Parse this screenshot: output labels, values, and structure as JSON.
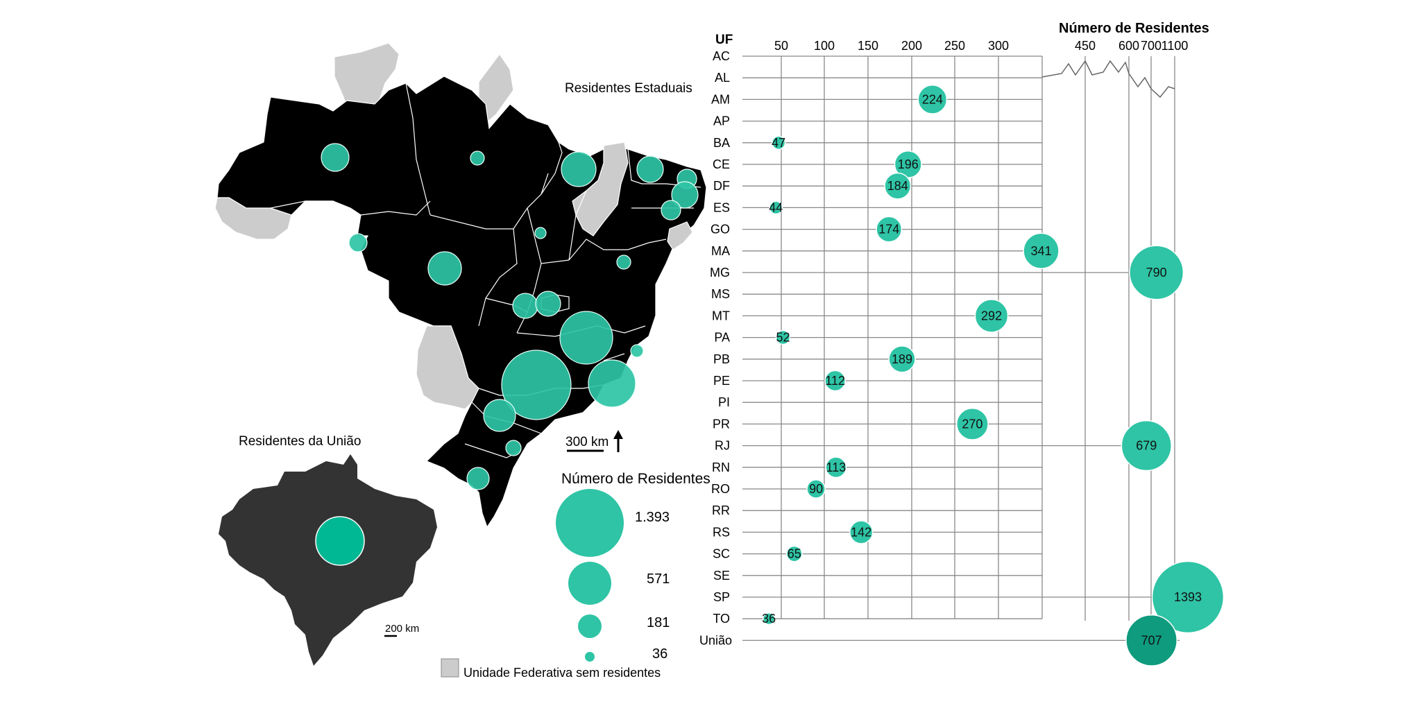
{
  "colors": {
    "bubble": "#2ec4a5",
    "bubble_dark": "#0e9b7e",
    "state_black": "#000000",
    "no_residents": "#cccccc",
    "union_map": "#333333",
    "grid": "#888888"
  },
  "map": {
    "state_title": "Residentes Estaduais",
    "union_title": "Residentes da União",
    "scale_state": "300 km",
    "scale_union": "200 km",
    "north_arrow_icon": "arrow-up-icon"
  },
  "legend": {
    "title": "Número de Residentes",
    "sizes": [
      "1.393",
      "571",
      "181",
      "36"
    ],
    "no_residents_label": "Unidade Federativa sem residentes"
  },
  "chart_data": {
    "type": "scatter",
    "encoding": "bubble",
    "title": "Número de Residentes",
    "ylabel": "UF",
    "categories": [
      "AC",
      "AL",
      "AM",
      "AP",
      "BA",
      "CE",
      "DF",
      "ES",
      "GO",
      "MA",
      "MG",
      "MS",
      "MT",
      "PA",
      "PB",
      "PE",
      "PI",
      "PR",
      "RJ",
      "RN",
      "RO",
      "RR",
      "RS",
      "SC",
      "SE",
      "SP",
      "TO",
      "União"
    ],
    "values": [
      null,
      null,
      224,
      null,
      47,
      196,
      184,
      44,
      174,
      341,
      790,
      null,
      292,
      52,
      189,
      112,
      null,
      270,
      679,
      113,
      90,
      null,
      142,
      65,
      null,
      1393,
      36,
      707
    ],
    "value_labels": [
      "",
      "",
      "224",
      "",
      "47",
      "196",
      "184",
      "44",
      "174",
      "341",
      "790",
      "",
      "292",
      "52",
      "189",
      "112",
      "",
      "270",
      "679",
      "113",
      "90",
      "",
      "142",
      "65",
      "",
      "1393",
      "36",
      "707"
    ],
    "x_ticks": [
      "50",
      "100",
      "150",
      "200",
      "250",
      "300",
      "450",
      "600",
      "700",
      "1100"
    ],
    "x_axis_broken": true,
    "grid": true
  }
}
